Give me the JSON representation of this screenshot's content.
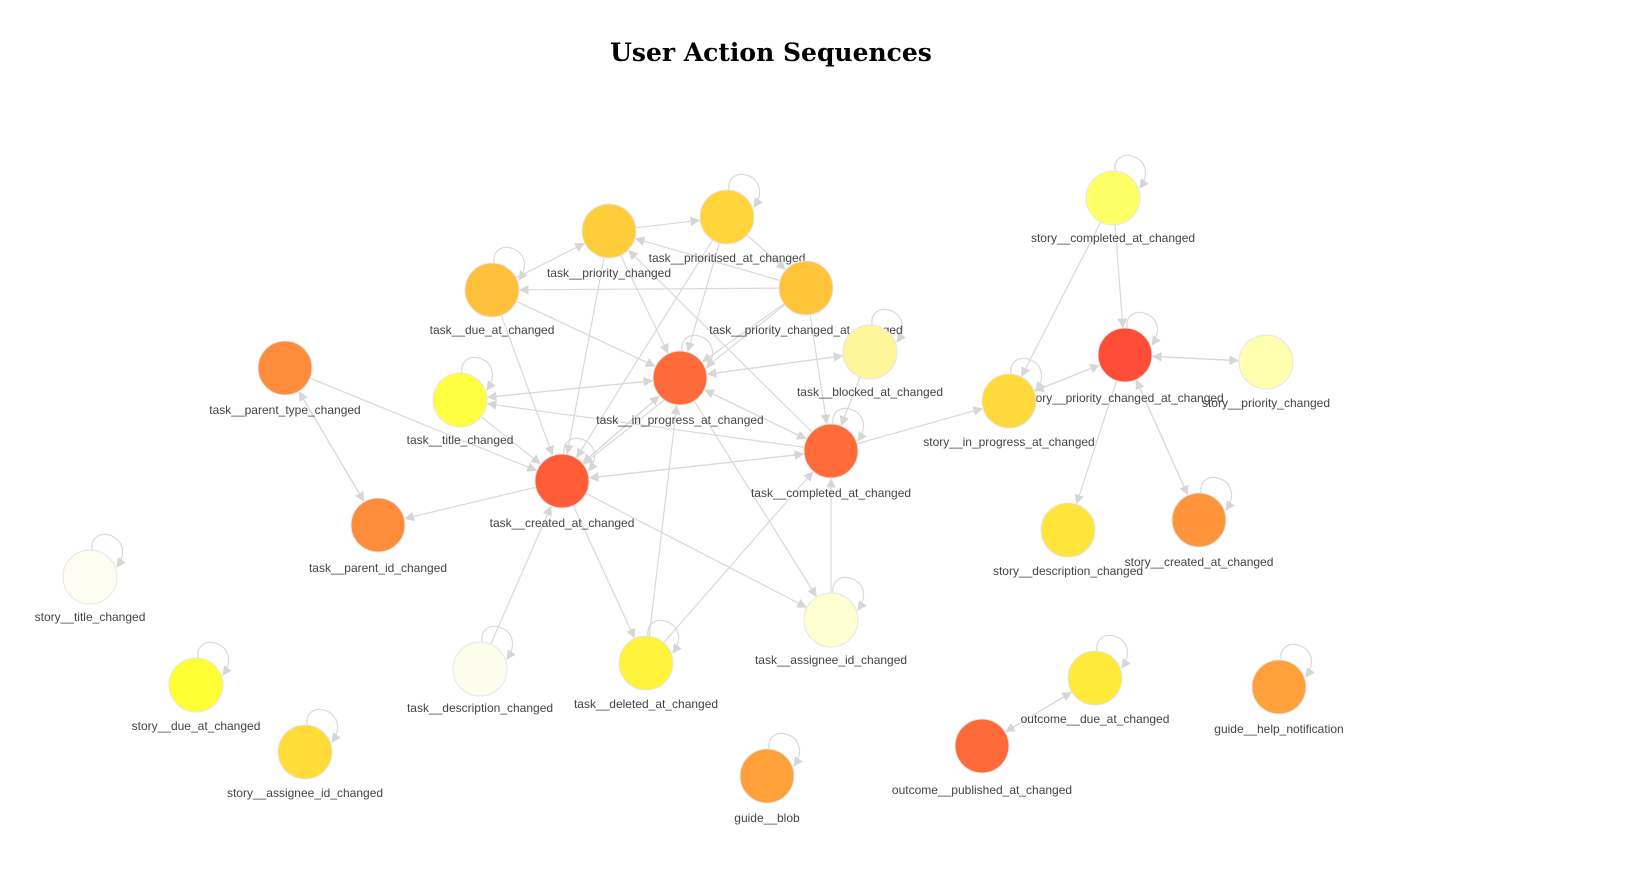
{
  "title": "User Action Sequences",
  "nodes": [
    {
      "id": "task__priority_changed",
      "label": "task__priority_changed",
      "color": "#ffcc3a"
    },
    {
      "id": "task__prioritised_at_changed",
      "label": "task__prioritised_at_changed",
      "color": "#ffd33a"
    },
    {
      "id": "task__due_at_changed",
      "label": "task__due_at_changed",
      "color": "#ffc13c"
    },
    {
      "id": "task__priority_changed_at_changed",
      "label": "task__priority_changed_at_changed",
      "color": "#ffc43a"
    },
    {
      "id": "task__blocked_at_changed",
      "label": "task__blocked_at_changed",
      "color": "#fff59a"
    },
    {
      "id": "task__parent_type_changed",
      "label": "task__parent_type_changed",
      "color": "#ff8c3a"
    },
    {
      "id": "task__title_changed",
      "label": "task__title_changed",
      "color": "#ffff42"
    },
    {
      "id": "task__in_progress_at_changed",
      "label": "task__in_progress_at_changed",
      "color": "#ff6a3a"
    },
    {
      "id": "task__completed_at_changed",
      "label": "task__completed_at_changed",
      "color": "#ff6c3a"
    },
    {
      "id": "task__created_at_changed",
      "label": "task__created_at_changed",
      "color": "#ff5c38"
    },
    {
      "id": "task__parent_id_changed",
      "label": "task__parent_id_changed",
      "color": "#ff8c3a"
    },
    {
      "id": "task__description_changed",
      "label": "task__description_changed",
      "color": "#fdfdee"
    },
    {
      "id": "task__deleted_at_changed",
      "label": "task__deleted_at_changed",
      "color": "#fff23a"
    },
    {
      "id": "task__assignee_id_changed",
      "label": "task__assignee_id_changed",
      "color": "#ffffd2"
    },
    {
      "id": "story__completed_at_changed",
      "label": "story__completed_at_changed",
      "color": "#ffff66"
    },
    {
      "id": "story__priority_changed_at_changed",
      "label": "story__priority_changed_at_changed",
      "color": "#ff4d38"
    },
    {
      "id": "story__priority_changed",
      "label": "story__priority_changed",
      "color": "#ffffb0"
    },
    {
      "id": "story__in_progress_at_changed",
      "label": "story__in_progress_at_changed",
      "color": "#ffd83a"
    },
    {
      "id": "story__description_changed",
      "label": "story__description_changed",
      "color": "#ffe43a"
    },
    {
      "id": "story__created_at_changed",
      "label": "story__created_at_changed",
      "color": "#ff943a"
    },
    {
      "id": "story__title_changed",
      "label": "story__title_changed",
      "color": "#fdfdf2"
    },
    {
      "id": "story__due_at_changed",
      "label": "story__due_at_changed",
      "color": "#ffff33"
    },
    {
      "id": "story__assignee_id_changed",
      "label": "story__assignee_id_changed",
      "color": "#ffdc3a"
    },
    {
      "id": "outcome__due_at_changed",
      "label": "outcome__due_at_changed",
      "color": "#ffe93a"
    },
    {
      "id": "outcome__published_at_changed",
      "label": "outcome__published_at_changed",
      "color": "#ff6a3a"
    },
    {
      "id": "guide__help_notification",
      "label": "guide__help_notification",
      "color": "#ffa03a"
    },
    {
      "id": "guide__blob",
      "label": "guide__blob",
      "color": "#ffa03a"
    }
  ],
  "self_loops": [
    "task__prioritised_at_changed",
    "task__due_at_changed",
    "task__blocked_at_changed",
    "task__title_changed",
    "task__in_progress_at_changed",
    "task__completed_at_changed",
    "task__created_at_changed",
    "task__description_changed",
    "task__deleted_at_changed",
    "task__assignee_id_changed",
    "story__completed_at_changed",
    "story__priority_changed_at_changed",
    "story__in_progress_at_changed",
    "story__created_at_changed",
    "story__title_changed",
    "story__due_at_changed",
    "story__assignee_id_changed",
    "guide__help_notification",
    "guide__blob",
    "outcome__due_at_changed"
  ],
  "edges": [
    {
      "source": "task__priority_changed",
      "target": "task__prioritised_at_changed"
    },
    {
      "source": "task__prioritised_at_changed",
      "target": "task__priority_changed_at_changed"
    },
    {
      "source": "task__priority_changed_at_changed",
      "target": "task__priority_changed"
    },
    {
      "source": "task__priority_changed_at_changed",
      "target": "task__due_at_changed"
    },
    {
      "source": "task__due_at_changed",
      "target": "task__priority_changed"
    },
    {
      "source": "task__due_at_changed",
      "target": "task__in_progress_at_changed"
    },
    {
      "source": "task__due_at_changed",
      "target": "task__created_at_changed"
    },
    {
      "source": "task__priority_changed",
      "target": "task__in_progress_at_changed"
    },
    {
      "source": "task__priority_changed",
      "target": "task__created_at_changed"
    },
    {
      "source": "task__prioritised_at_changed",
      "target": "task__in_progress_at_changed"
    },
    {
      "source": "task__prioritised_at_changed",
      "target": "task__created_at_changed"
    },
    {
      "source": "task__priority_changed_at_changed",
      "target": "task__in_progress_at_changed"
    },
    {
      "source": "task__priority_changed_at_changed",
      "target": "task__completed_at_changed"
    },
    {
      "source": "task__priority_changed_at_changed",
      "target": "task__created_at_changed"
    },
    {
      "source": "task__in_progress_at_changed",
      "target": "task__title_changed"
    },
    {
      "source": "task__title_changed",
      "target": "task__in_progress_at_changed"
    },
    {
      "source": "task__in_progress_at_changed",
      "target": "task__blocked_at_changed"
    },
    {
      "source": "task__blocked_at_changed",
      "target": "task__in_progress_at_changed"
    },
    {
      "source": "task__in_progress_at_changed",
      "target": "task__completed_at_changed"
    },
    {
      "source": "task__completed_at_changed",
      "target": "task__in_progress_at_changed"
    },
    {
      "source": "task__in_progress_at_changed",
      "target": "task__created_at_changed"
    },
    {
      "source": "task__created_at_changed",
      "target": "task__in_progress_at_changed"
    },
    {
      "source": "task__completed_at_changed",
      "target": "task__title_changed"
    },
    {
      "source": "task__completed_at_changed",
      "target": "task__created_at_changed"
    },
    {
      "source": "task__created_at_changed",
      "target": "task__completed_at_changed"
    },
    {
      "source": "task__completed_at_changed",
      "target": "task__priority_changed"
    },
    {
      "source": "task__blocked_at_changed",
      "target": "task__completed_at_changed"
    },
    {
      "source": "task__title_changed",
      "target": "task__created_at_changed"
    },
    {
      "source": "task__parent_type_changed",
      "target": "task__parent_id_changed"
    },
    {
      "source": "task__parent_id_changed",
      "target": "task__parent_type_changed"
    },
    {
      "source": "task__parent_type_changed",
      "target": "task__created_at_changed"
    },
    {
      "source": "task__created_at_changed",
      "target": "task__parent_id_changed"
    },
    {
      "source": "task__created_at_changed",
      "target": "task__deleted_at_changed"
    },
    {
      "source": "task__created_at_changed",
      "target": "task__assignee_id_changed"
    },
    {
      "source": "task__description_changed",
      "target": "task__created_at_changed"
    },
    {
      "source": "task__deleted_at_changed",
      "target": "task__in_progress_at_changed"
    },
    {
      "source": "task__assignee_id_changed",
      "target": "task__completed_at_changed"
    },
    {
      "source": "task__in_progress_at_changed",
      "target": "task__assignee_id_changed"
    },
    {
      "source": "task__deleted_at_changed",
      "target": "task__completed_at_changed"
    },
    {
      "source": "task__completed_at_changed",
      "target": "story__in_progress_at_changed"
    },
    {
      "source": "story__completed_at_changed",
      "target": "story__in_progress_at_changed"
    },
    {
      "source": "story__completed_at_changed",
      "target": "story__priority_changed_at_changed"
    },
    {
      "source": "story__in_progress_at_changed",
      "target": "story__priority_changed_at_changed"
    },
    {
      "source": "story__priority_changed_at_changed",
      "target": "story__in_progress_at_changed"
    },
    {
      "source": "story__priority_changed_at_changed",
      "target": "story__priority_changed"
    },
    {
      "source": "story__priority_changed",
      "target": "story__priority_changed_at_changed"
    },
    {
      "source": "story__priority_changed_at_changed",
      "target": "story__description_changed"
    },
    {
      "source": "story__priority_changed_at_changed",
      "target": "story__created_at_changed"
    },
    {
      "source": "story__created_at_changed",
      "target": "story__priority_changed_at_changed"
    },
    {
      "source": "outcome__published_at_changed",
      "target": "outcome__due_at_changed"
    },
    {
      "source": "outcome__due_at_changed",
      "target": "outcome__published_at_changed"
    }
  ]
}
